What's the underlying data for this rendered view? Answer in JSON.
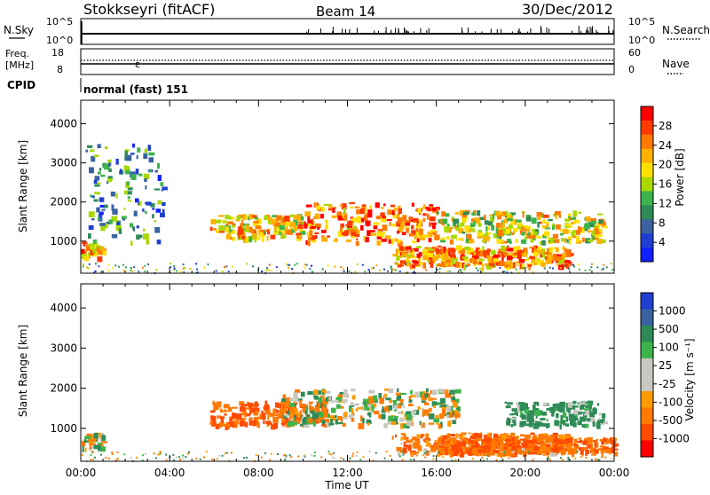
{
  "header": {
    "station": "Stokkseyri (fitACF)",
    "beam": "Beam 14",
    "date": "30/Dec/2012"
  },
  "panels": {
    "nsky": {
      "label": "N.Sky",
      "right_label": "N.Search",
      "left_ticks": [
        "10^5",
        "10^0"
      ],
      "right_ticks": [
        "10^5",
        "10^0"
      ]
    },
    "freq": {
      "label_line1": "Freq.",
      "label_line2": "[MHz]",
      "right_label": "Nave",
      "left_ticks": [
        "18",
        "8"
      ],
      "right_ticks": [
        "60",
        "0"
      ]
    },
    "cpid": {
      "label": "CPID",
      "value": "normal (fast) 151"
    }
  },
  "chart_data": [
    {
      "type": "heatmap",
      "name": "power",
      "ylabel": "Slant Range [km]",
      "xlabel": "Time UT",
      "ylim": [
        180,
        4600
      ],
      "xlim": [
        0,
        24
      ],
      "y_ticks": [
        "1000",
        "2000",
        "3000",
        "4000"
      ],
      "x_ticks": [
        "00:00",
        "04:00",
        "08:00",
        "12:00",
        "16:00",
        "20:00",
        "00:00"
      ],
      "colorbar": {
        "label": "Power [dB]",
        "ticks": [
          "28",
          "24",
          "20",
          "16",
          "12",
          "8",
          "4"
        ],
        "colors": [
          "#ff0000",
          "#ff3a00",
          "#ff7a00",
          "#ffb000",
          "#ffe000",
          "#a8d800",
          "#3cb44b",
          "#2e8b57",
          "#3a62a0",
          "#1f3fd0",
          "#1020ff"
        ]
      },
      "bands": [
        {
          "t0": 0.0,
          "t1": 1.0,
          "r0": 600,
          "r1": 1000,
          "value": 22
        },
        {
          "t0": 5.8,
          "t1": 10.0,
          "r0": 1100,
          "r1": 1700,
          "value": 20
        },
        {
          "t0": 10.0,
          "t1": 16.0,
          "r0": 1000,
          "r1": 2000,
          "value": 24
        },
        {
          "t0": 14.0,
          "t1": 22.0,
          "r0": 400,
          "r1": 900,
          "value": 22
        },
        {
          "t0": 16.0,
          "t1": 23.5,
          "r0": 1000,
          "r1": 1800,
          "value": 18
        },
        {
          "t0": 0.2,
          "t1": 3.7,
          "r0": 1000,
          "r1": 3500,
          "value": 10
        }
      ]
    },
    {
      "type": "heatmap",
      "name": "velocity",
      "ylabel": "Slant Range [km]",
      "xlabel": "Time UT",
      "ylim": [
        180,
        4600
      ],
      "xlim": [
        0,
        24
      ],
      "y_ticks": [
        "1000",
        "2000",
        "3000",
        "4000"
      ],
      "x_ticks": [
        "00:00",
        "04:00",
        "08:00",
        "12:00",
        "16:00",
        "20:00",
        "00:00"
      ],
      "colorbar": {
        "label": "Velocity [m s⁻¹]",
        "ticks": [
          "1000",
          "500",
          "100",
          "25",
          "-25",
          "-100",
          "-500",
          "-1000"
        ],
        "colors": [
          "#1f3fd0",
          "#3a62a0",
          "#2e8b57",
          "#3cb44b",
          "#c8c8c0",
          "#c8c8c0",
          "#ff9a00",
          "#ff7a00",
          "#ff4a00",
          "#ff0000"
        ]
      },
      "bands": [
        {
          "t0": 5.8,
          "t1": 11.0,
          "r0": 1100,
          "r1": 1700,
          "value": -300
        },
        {
          "t0": 9.0,
          "t1": 17.0,
          "r0": 1100,
          "r1": 2000,
          "value": 0
        },
        {
          "t0": 14.0,
          "t1": 22.0,
          "r0": 400,
          "r1": 900,
          "value": -200
        },
        {
          "t0": 16.0,
          "t1": 24.0,
          "r0": 400,
          "r1": 800,
          "value": -300
        },
        {
          "t0": 0.0,
          "t1": 1.0,
          "r0": 500,
          "r1": 900,
          "value": 0
        },
        {
          "t0": 19.0,
          "t1": 23.5,
          "r0": 1100,
          "r1": 1700,
          "value": 200
        }
      ]
    }
  ]
}
